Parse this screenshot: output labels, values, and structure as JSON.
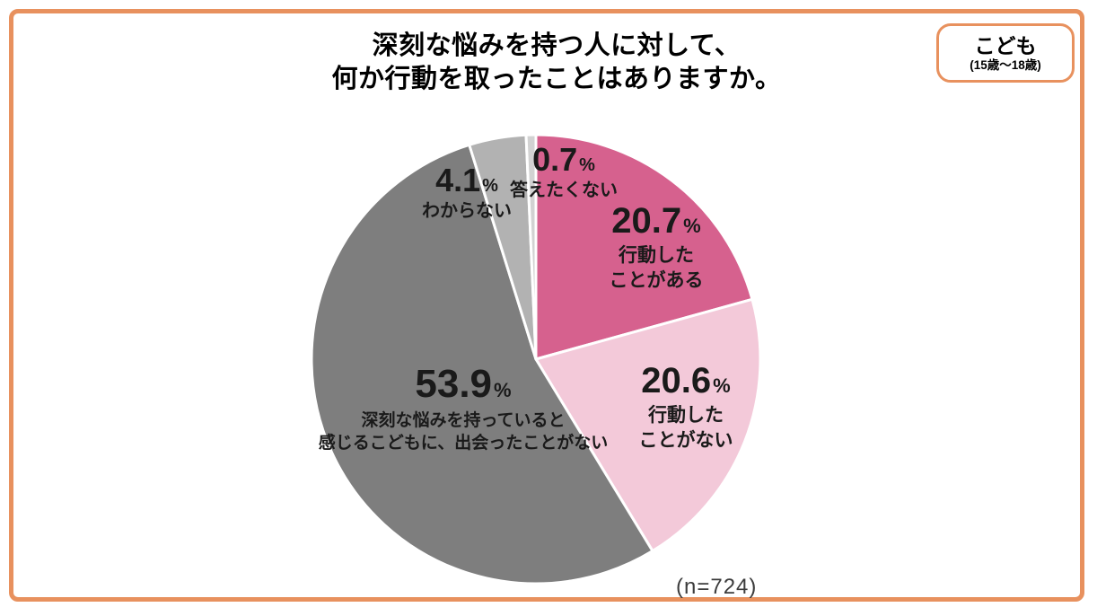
{
  "title": {
    "line1": "深刻な悩みを持つ人に対して、",
    "line2": "何か行動を取ったことはありますか。"
  },
  "badge": {
    "title": "こども",
    "subtitle": "(15歳〜18歳)"
  },
  "sample_size": "(n=724)",
  "colors": {
    "frame_orange": "#E8915E",
    "pink": "#D6618E",
    "light_pink": "#F3C9D9",
    "dark_gray": "#7E7E7E",
    "mid_gray": "#B2B2B2",
    "light_gray": "#D2D2D2",
    "separator": "#FFFFFF",
    "text": "#1A1A1A"
  },
  "chart_data": {
    "type": "pie",
    "title": "深刻な悩みを持つ人に対して、何か行動を取ったことはありますか。",
    "n": 724,
    "start_angle_deg": 0,
    "direction": "clockwise",
    "legend_position": "none",
    "slices": [
      {
        "label": "行動したことがある",
        "value": 20.7,
        "color": "#D6618E"
      },
      {
        "label": "行動したことがない",
        "value": 20.6,
        "color": "#F3C9D9"
      },
      {
        "label": "深刻な悩みを持っていると感じるこどもに、出会ったことがない",
        "value": 53.9,
        "color": "#7E7E7E"
      },
      {
        "label": "わからない",
        "value": 4.1,
        "color": "#B2B2B2"
      },
      {
        "label": "答えたくない",
        "value": 0.7,
        "color": "#D2D2D2"
      }
    ]
  },
  "slice_labels": [
    {
      "value": "20.7",
      "unit": "%",
      "line1": "行動した",
      "line2": "ことがある"
    },
    {
      "value": "20.6",
      "unit": "%",
      "line1": "行動した",
      "line2": "ことがない"
    },
    {
      "value": "53.9",
      "unit": "%",
      "line1": "深刻な悩みを持っていると",
      "line2": "感じるこどもに、出会ったことがない"
    },
    {
      "value": "4.1",
      "unit": "%",
      "line1": "わからない"
    },
    {
      "value": "0.7",
      "unit": "%",
      "line1": "答えたくない"
    }
  ]
}
